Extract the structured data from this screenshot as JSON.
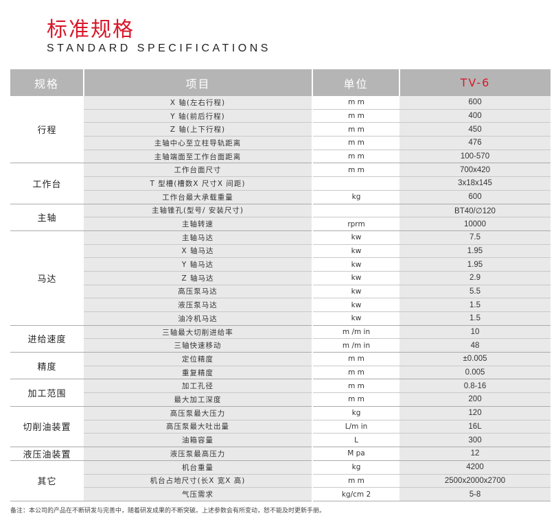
{
  "title_cn": "标准规格",
  "title_en": "STANDARD SPECIFICATIONS",
  "headers": {
    "category": "规格",
    "item": "项目",
    "unit": "单位",
    "model": "TV-6"
  },
  "model_color": "#d7182a",
  "groups": [
    {
      "category": "行程",
      "rows": [
        {
          "item": "X 轴(左右行程)",
          "unit": "m m",
          "value": "600"
        },
        {
          "item": "Y 轴(前后行程)",
          "unit": "m m",
          "value": "400"
        },
        {
          "item": "Z 轴(上下行程)",
          "unit": "m m",
          "value": "450"
        },
        {
          "item": "主轴中心至立柱导轨距离",
          "unit": "m m",
          "value": "476"
        },
        {
          "item": "主轴端面至工作台面距离",
          "unit": "m m",
          "value": "100-570"
        }
      ]
    },
    {
      "category": "工作台",
      "rows": [
        {
          "item": "工作台面尺寸",
          "unit": "m m",
          "value": "700x420"
        },
        {
          "item": "T 型槽(槽数X 尺寸X 间距)",
          "unit": "",
          "value": "3x18x145"
        },
        {
          "item": "工作台最大承载重量",
          "unit": "kg",
          "value": "600"
        }
      ]
    },
    {
      "category": "主轴",
      "rows": [
        {
          "item": "主轴锥孔(型号/ 安装尺寸)",
          "unit": "",
          "value": "BT40/∅120"
        },
        {
          "item": "主轴转速",
          "unit": "rprm",
          "value": "10000"
        }
      ]
    },
    {
      "category": "马达",
      "rows": [
        {
          "item": "主轴马达",
          "unit": "kw",
          "value": "7.5"
        },
        {
          "item": "X 轴马达",
          "unit": "kw",
          "value": "1.95"
        },
        {
          "item": "Y 轴马达",
          "unit": "kw",
          "value": "1.95"
        },
        {
          "item": "Z 轴马达",
          "unit": "kw",
          "value": "2.9"
        },
        {
          "item": "高压泵马达",
          "unit": "kw",
          "value": "5.5"
        },
        {
          "item": "液压泵马达",
          "unit": "kw",
          "value": "1.5"
        },
        {
          "item": "油冷机马达",
          "unit": "kw",
          "value": "1.5"
        }
      ]
    },
    {
      "category": "进给速度",
      "rows": [
        {
          "item": "三轴最大切削进给率",
          "unit": "m /m in",
          "value": "10"
        },
        {
          "item": "三轴快速移动",
          "unit": "m /m in",
          "value": "48"
        }
      ]
    },
    {
      "category": "精度",
      "rows": [
        {
          "item": "定位精度",
          "unit": "m m",
          "value": "±0.005"
        },
        {
          "item": "重复精度",
          "unit": "m m",
          "value": "0.005"
        }
      ]
    },
    {
      "category": "加工范围",
      "rows": [
        {
          "item": "加工孔径",
          "unit": "m m",
          "value": "0.8-16"
        },
        {
          "item": "最大加工深度",
          "unit": "m m",
          "value": "200"
        }
      ]
    },
    {
      "category": "切削油装置",
      "rows": [
        {
          "item": "高压泵最大压力",
          "unit": "kg",
          "value": "120"
        },
        {
          "item": "高压泵最大吐出量",
          "unit": "L/m in",
          "value": "16L"
        },
        {
          "item": "油箱容量",
          "unit": "L",
          "value": "300"
        }
      ]
    },
    {
      "category": "液压油装置",
      "rows": [
        {
          "item": "液压泵最高压力",
          "unit": "M pa",
          "value": "12"
        }
      ]
    },
    {
      "category": "其它",
      "rows": [
        {
          "item": "机台重量",
          "unit": "kg",
          "value": "4200"
        },
        {
          "item": "机台占地尺寸(长X 宽X 高)",
          "unit": "m m",
          "value": "2500x2000x2700"
        },
        {
          "item": "气压需求",
          "unit": "kg/cm 2",
          "value": "5-8"
        }
      ]
    }
  ],
  "note": "备注：本公司的产品在不断研发与完善中，随着研发成果的不断突破。上述参数会有所变动，恕不能及时更新手册。"
}
